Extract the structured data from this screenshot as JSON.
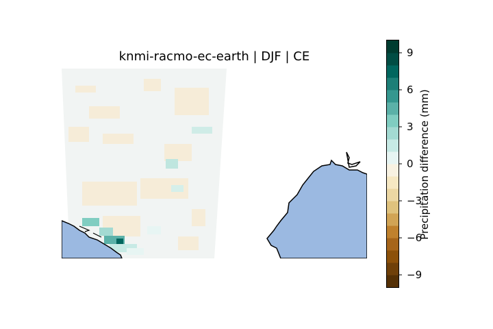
{
  "title": "knmi-racmo-ec-earth | DJF | CE",
  "colorbar": {
    "label": "Precipitation difference (mm)",
    "ticks": [
      {
        "value": 9,
        "text": "9"
      },
      {
        "value": 6,
        "text": "6"
      },
      {
        "value": 3,
        "text": "3"
      },
      {
        "value": 0,
        "text": "0"
      },
      {
        "value": -3,
        "text": "−3"
      },
      {
        "value": -6,
        "text": "−6"
      },
      {
        "value": -9,
        "text": "−9"
      }
    ],
    "vmin": -10,
    "vmax": 10,
    "levels": 20,
    "colors": [
      "#543005",
      "#6f4009",
      "#8c510a",
      "#a6651a",
      "#bf812d",
      "#d1a455",
      "#dfc27d",
      "#ecd7a3",
      "#f6e8c3",
      "#f8f2e2",
      "#e7f5f3",
      "#c7eae5",
      "#a3dad2",
      "#80cdc1",
      "#5bb1a8",
      "#35978f",
      "#1d7f77",
      "#01665e",
      "#014d44",
      "#003c30"
    ]
  },
  "map": {
    "ocean_color": "#9bb9e1",
    "land_region_color": "#f1f4f3",
    "coastline_color": "#000000"
  }
}
